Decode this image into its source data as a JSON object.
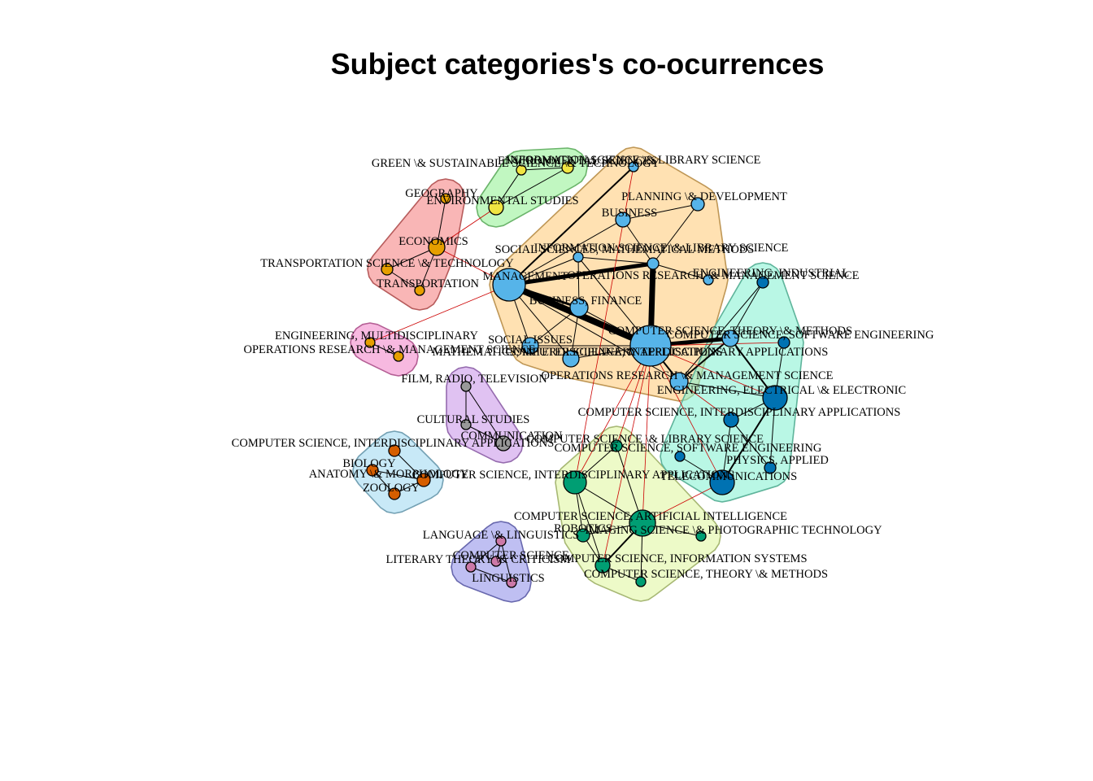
{
  "title": "Subject categories's co-ocurrences",
  "colors": {
    "orange": "#ffc973",
    "red": "#f47a7a",
    "green": "#8ef08e",
    "pink": "#f17fc7",
    "purple": "#c78fe8",
    "lightblue": "#9ad7f0",
    "blue": "#8a8ae8",
    "yellow": "#dff59a",
    "teal": "#7ff0cf",
    "n_blue": "#56b4e9",
    "n_dblue": "#0072b2",
    "n_green": "#009e73",
    "n_orange": "#e69f00",
    "n_yellow": "#f0e442",
    "n_grey": "#999999",
    "n_rust": "#d55e00",
    "n_pink": "#cc79a7",
    "edge_between": "#cc0000",
    "edge_within": "#000000"
  },
  "nodes": [
    {
      "id": "mgmt",
      "label": "MANAGEMENT",
      "size": 20,
      "color": "n_blue"
    },
    {
      "id": "csia",
      "label": "COMPUTER SCIENCE, INTERDISCIPLINARY APPLICATIONS",
      "size": 25,
      "color": "n_blue"
    },
    {
      "id": "is_ls",
      "label": "INFORMATION SCIENCE \\& LIBRARY SCIENCE",
      "size": 7,
      "color": "n_blue"
    },
    {
      "id": "soc_math",
      "label": "SOCIAL  SCIENCES, MATHEMATICAL METHODS",
      "size": 6,
      "color": "n_blue"
    },
    {
      "id": "bus_fin",
      "label": "BUSINESS, FINANCE",
      "size": 11,
      "color": "n_blue"
    },
    {
      "id": "business",
      "label": "BUSINESS",
      "size": 9,
      "color": "n_blue"
    },
    {
      "id": "planning",
      "label": "PLANNING \\& DEVELOPMENT",
      "size": 8,
      "color": "n_blue"
    },
    {
      "id": "is_ls_top",
      "label": "INFORMATION SCIENCE \\& LIBRARY SCIENCE",
      "size": 6,
      "color": "n_blue"
    },
    {
      "id": "social_issues",
      "label": "SOCIAL ISSUES",
      "size": 10,
      "color": "n_blue"
    },
    {
      "id": "math_ia",
      "label": "MATHEMATICS, INTERDISCIPLINARY APPLICATIONS",
      "size": 10,
      "color": "n_blue"
    },
    {
      "id": "or_ms_blue",
      "label": "OPERATIONS RESEARCH \\& MANAGEMENT SCIENCE",
      "size": 11,
      "color": "n_blue"
    },
    {
      "id": "or_ms_ind",
      "label": "OPERATIONS RESEARCH \\& MANAGEMENT   SCIENCE",
      "size": 6,
      "color": "n_blue"
    },
    {
      "id": "eng_ind",
      "label": "ENGINEERING, INDUSTRIAL",
      "size": 7,
      "color": "n_dblue"
    },
    {
      "id": "cs_tm_blue",
      "label": "COMPUTER SCIENCE, THEORY \\&  METHODS",
      "size": 10,
      "color": "n_blue"
    },
    {
      "id": "cs_se_blue",
      "label": "COMPUTER SCIENCE, SOFTWARE ENGINEERING",
      "size": 7,
      "color": "n_dblue"
    },
    {
      "id": "eng_elec",
      "label": "ENGINEERING, ELECTRICAL \\& ELECTRONIC",
      "size": 15,
      "color": "n_dblue"
    },
    {
      "id": "cs_ia_teal",
      "label": "COMPUTER SCIENCE,  INTERDISCIPLINARY APPLICATIONS",
      "size": 9,
      "color": "n_dblue"
    },
    {
      "id": "physics",
      "label": "PHYSICS, APPLIED",
      "size": 7,
      "color": "n_dblue"
    },
    {
      "id": "telecom",
      "label": "TELECOMMUNICATIONS",
      "size": 15,
      "color": "n_dblue"
    },
    {
      "id": "cs_se_teal",
      "label": "COMPUTER SCIENCE, SOFTWARE  ENGINEERING",
      "size": 6,
      "color": "n_dblue"
    },
    {
      "id": "cs_ai",
      "label": "COMPUTER SCIENCE, ARTIFICIAL INTELLIGENCE",
      "size": 16,
      "color": "n_green"
    },
    {
      "id": "cs_ia_green",
      "label": "COMPUTER SCIENCE, INTERDISCIPLINARY APPLICATIONS",
      "size": 14,
      "color": "n_green"
    },
    {
      "id": "cs_ls_green",
      "label": "COMPUTER SCIENCE  \\&  LIBRARY SCIENCE",
      "size": 7,
      "color": "n_green"
    },
    {
      "id": "robotics",
      "label": "ROBOTICS",
      "size": 8,
      "color": "n_green"
    },
    {
      "id": "imaging",
      "label": "IMAGING SCIENCE  \\&  PHOTOGRAPHIC TECHNOLOGY",
      "size": 6,
      "color": "n_green"
    },
    {
      "id": "cs_is",
      "label": "COMPUTER SCIENCE, INFORMATION   SYSTEMS",
      "size": 9,
      "color": "n_green"
    },
    {
      "id": "cs_tm_green",
      "label": "COMPUTER SCIENCE, THEORY \\& METHODS",
      "size": 6,
      "color": "n_green"
    },
    {
      "id": "geography",
      "label": "GEOGRAPHY",
      "size": 6,
      "color": "n_orange"
    },
    {
      "id": "economics",
      "label": "ECONOMICS",
      "size": 10,
      "color": "n_orange"
    },
    {
      "id": "trans_sci",
      "label": "TRANSPORTATION SCIENCE \\& TECHNOLOGY",
      "size": 7,
      "color": "n_orange"
    },
    {
      "id": "transport",
      "label": "TRANSPORTATION",
      "size": 6,
      "color": "n_orange"
    },
    {
      "id": "env_studies",
      "label": "ENVIRONMENTAL STUDIES",
      "size": 9,
      "color": "n_yellow"
    },
    {
      "id": "green_sus",
      "label": "GREEN \\& SUSTAINABLE SCIENCE \\& TECHNOLOGY",
      "size": 6,
      "color": "n_yellow"
    },
    {
      "id": "env_sci",
      "label": "ENVIRONMENTAL SCIENCES",
      "size": 7,
      "color": "n_yellow"
    },
    {
      "id": "eng_multi",
      "label": "ENGINEERING, MULTIDISCIPLINARY",
      "size": 6,
      "color": "n_orange"
    },
    {
      "id": "or_ms_pink",
      "label": "OPERATIONS RESEARCH \\&  MANAGEMENT SCIENCE",
      "size": 6,
      "color": "n_orange"
    },
    {
      "id": "film",
      "label": "FILM, RADIO, TELEVISION",
      "size": 6,
      "color": "n_grey"
    },
    {
      "id": "cultural",
      "label": "CULTURAL STUDIES",
      "size": 6,
      "color": "n_grey"
    },
    {
      "id": "communication",
      "label": "COMMUNICATION",
      "size": 9,
      "color": "n_grey"
    },
    {
      "id": "cs_ia_lb",
      "label": "COMPUTER SCIENCE, INTERDISCIPLINARY  APPLICATIONS",
      "size": 7,
      "color": "n_rust"
    },
    {
      "id": "biology",
      "label": "BIOLOGY",
      "size": 7,
      "color": "n_rust"
    },
    {
      "id": "anatomy",
      "label": "ANATOMY \\& MORPHOLOGY",
      "size": 8,
      "color": "n_rust"
    },
    {
      "id": "zoology",
      "label": "ZOOLOGY",
      "size": 7,
      "color": "n_rust"
    },
    {
      "id": "language",
      "label": "LANGUAGE \\& LINGUISTICS",
      "size": 6,
      "color": "n_pink"
    },
    {
      "id": "literary",
      "label": "LITERARY THEORY \\& CRITICISM",
      "size": 6,
      "color": "n_pink"
    },
    {
      "id": "linguistics",
      "label": "LINGUISTICS",
      "size": 6,
      "color": "n_pink"
    },
    {
      "id": "cs_pink",
      "label": "COMPUTER SCIENCE,",
      "size": 6,
      "color": "n_pink"
    }
  ],
  "edges": [
    {
      "a": "mgmt",
      "b": "csia",
      "w": 8
    },
    {
      "a": "csia",
      "b": "is_ls",
      "w": 7
    },
    {
      "a": "mgmt",
      "b": "is_ls",
      "w": 5
    },
    {
      "a": "mgmt",
      "b": "bus_fin",
      "w": 3
    },
    {
      "a": "csia",
      "b": "cs_tm_blue",
      "w": 5
    },
    {
      "a": "mgmt",
      "b": "is_ls_top",
      "w": 2
    },
    {
      "a": "mgmt",
      "b": "soc_math",
      "w": 1
    },
    {
      "a": "mgmt",
      "b": "business",
      "w": 1
    },
    {
      "a": "mgmt",
      "b": "social_issues",
      "w": 1
    },
    {
      "a": "mgmt",
      "b": "math_ia",
      "w": 1
    },
    {
      "a": "mgmt",
      "b": "or_ms_blue",
      "w": 1
    },
    {
      "a": "csia",
      "b": "or_ms_blue",
      "w": 2
    },
    {
      "a": "csia",
      "b": "bus_fin",
      "w": 1
    },
    {
      "a": "csia",
      "b": "math_ia",
      "w": 1
    },
    {
      "a": "csia",
      "b": "social_issues",
      "w": 1
    },
    {
      "a": "csia",
      "b": "soc_math",
      "w": 1
    },
    {
      "a": "business",
      "b": "planning",
      "w": 1
    },
    {
      "a": "business",
      "b": "is_ls",
      "w": 1
    },
    {
      "a": "is_ls",
      "b": "planning",
      "w": 1
    },
    {
      "a": "is_ls",
      "b": "or_ms_ind",
      "w": 1
    },
    {
      "a": "bus_fin",
      "b": "math_ia",
      "w": 1
    },
    {
      "a": "bus_fin",
      "b": "soc_math",
      "w": 1
    },
    {
      "a": "bus_fin",
      "b": "social_issues",
      "w": 1
    },
    {
      "a": "is_ls",
      "b": "soc_math",
      "w": 1
    },
    {
      "a": "eng_ind",
      "b": "cs_tm_blue",
      "w": 1
    },
    {
      "a": "eng_ind",
      "b": "or_ms_blue",
      "w": 1
    },
    {
      "a": "cs_tm_blue",
      "b": "eng_elec",
      "w": 2
    },
    {
      "a": "cs_se_blue",
      "b": "eng_elec",
      "w": 1
    },
    {
      "a": "eng_elec",
      "b": "cs_ia_teal",
      "w": 1
    },
    {
      "a": "eng_elec",
      "b": "telecom",
      "w": 2
    },
    {
      "a": "eng_elec",
      "b": "physics",
      "w": 1
    },
    {
      "a": "cs_ia_teal",
      "b": "telecom",
      "w": 1
    },
    {
      "a": "cs_ia_teal",
      "b": "physics",
      "w": 1
    },
    {
      "a": "telecom",
      "b": "cs_se_teal",
      "w": 1
    },
    {
      "a": "or_ms_blue",
      "b": "cs_tm_blue",
      "w": 2
    },
    {
      "a": "or_ms_blue",
      "b": "eng_elec",
      "w": 1
    },
    {
      "a": "cs_ai",
      "b": "cs_ia_green",
      "w": 1
    },
    {
      "a": "cs_ai",
      "b": "cs_ls_green",
      "w": 1
    },
    {
      "a": "cs_ai",
      "b": "robotics",
      "w": 1
    },
    {
      "a": "cs_ai",
      "b": "imaging",
      "w": 1
    },
    {
      "a": "cs_ai",
      "b": "cs_is",
      "w": 2
    },
    {
      "a": "cs_ai",
      "b": "cs_tm_green",
      "w": 1
    },
    {
      "a": "cs_ia_green",
      "b": "robotics",
      "w": 1
    },
    {
      "a": "cs_ia_green",
      "b": "cs_is",
      "w": 1
    },
    {
      "a": "cs_ia_green",
      "b": "cs_ls_green",
      "w": 1
    },
    {
      "a": "robotics",
      "b": "cs_is",
      "w": 1
    },
    {
      "a": "cs_is",
      "b": "cs_tm_green",
      "w": 1
    },
    {
      "a": "geography",
      "b": "economics",
      "w": 1
    },
    {
      "a": "economics",
      "b": "trans_sci",
      "w": 1
    },
    {
      "a": "economics",
      "b": "transport",
      "w": 1
    },
    {
      "a": "trans_sci",
      "b": "transport",
      "w": 1
    },
    {
      "a": "env_studies",
      "b": "green_sus",
      "w": 1
    },
    {
      "a": "env_studies",
      "b": "env_sci",
      "w": 1
    },
    {
      "a": "green_sus",
      "b": "env_sci",
      "w": 1
    },
    {
      "a": "eng_multi",
      "b": "or_ms_pink",
      "w": 1
    },
    {
      "a": "film",
      "b": "cultural",
      "w": 1
    },
    {
      "a": "cultural",
      "b": "communication",
      "w": 1
    },
    {
      "a": "film",
      "b": "communication",
      "w": 1
    },
    {
      "a": "cs_ia_lb",
      "b": "anatomy",
      "w": 1
    },
    {
      "a": "biology",
      "b": "anatomy",
      "w": 1
    },
    {
      "a": "biology",
      "b": "zoology",
      "w": 1
    },
    {
      "a": "anatomy",
      "b": "zoology",
      "w": 1
    },
    {
      "a": "language",
      "b": "literary",
      "w": 1
    },
    {
      "a": "language",
      "b": "linguistics",
      "w": 1
    },
    {
      "a": "literary",
      "b": "linguistics",
      "w": 1
    },
    {
      "a": "language",
      "b": "cs_pink",
      "w": 1
    },
    {
      "a": "mgmt",
      "b": "economics",
      "w": 1,
      "between": true
    },
    {
      "a": "mgmt",
      "b": "eng_multi",
      "w": 1,
      "between": true
    },
    {
      "a": "csia",
      "b": "cs_ia_green",
      "w": 1,
      "between": true
    },
    {
      "a": "csia",
      "b": "cs_ai",
      "w": 1,
      "between": true
    },
    {
      "a": "csia",
      "b": "telecom",
      "w": 1,
      "between": true
    },
    {
      "a": "csia",
      "b": "eng_elec",
      "w": 1,
      "between": true
    },
    {
      "a": "csia",
      "b": "cs_se_blue",
      "w": 1,
      "between": true
    },
    {
      "a": "csia",
      "b": "cs_ls_green",
      "w": 1,
      "between": true
    },
    {
      "a": "csia",
      "b": "cs_is",
      "w": 1,
      "between": true
    },
    {
      "a": "or_ms_blue",
      "b": "cs_ia_teal",
      "w": 1,
      "between": true
    },
    {
      "a": "is_ls_top",
      "b": "cs_ia_green",
      "w": 1,
      "between": true
    },
    {
      "a": "env_studies",
      "b": "economics",
      "w": 1,
      "between": true
    },
    {
      "a": "cs_ai",
      "b": "telecom",
      "w": 1,
      "between": true
    }
  ],
  "groups": [
    {
      "id": "orange",
      "fill": "orange",
      "members": [
        "mgmt",
        "csia",
        "is_ls",
        "soc_math",
        "bus_fin",
        "business",
        "planning",
        "is_ls_top",
        "social_issues",
        "math_ia",
        "or_ms_blue",
        "or_ms_ind"
      ]
    },
    {
      "id": "red",
      "fill": "red",
      "members": [
        "geography",
        "economics",
        "trans_sci",
        "transport"
      ]
    },
    {
      "id": "green",
      "fill": "green",
      "members": [
        "env_studies",
        "green_sus",
        "env_sci"
      ]
    },
    {
      "id": "pink",
      "fill": "pink",
      "members": [
        "eng_multi",
        "or_ms_pink"
      ]
    },
    {
      "id": "purple",
      "fill": "purple",
      "members": [
        "film",
        "cultural",
        "communication"
      ]
    },
    {
      "id": "lightblue",
      "fill": "lightblue",
      "members": [
        "cs_ia_lb",
        "biology",
        "anatomy",
        "zoology"
      ]
    },
    {
      "id": "blue",
      "fill": "blue",
      "members": [
        "language",
        "literary",
        "linguistics",
        "cs_pink"
      ]
    },
    {
      "id": "yellow",
      "fill": "yellow",
      "members": [
        "cs_ai",
        "cs_ia_green",
        "cs_ls_green",
        "robotics",
        "imaging",
        "cs_is",
        "cs_tm_green"
      ]
    },
    {
      "id": "teal",
      "fill": "teal",
      "members": [
        "eng_ind",
        "cs_tm_blue",
        "cs_se_blue",
        "eng_elec",
        "cs_ia_teal",
        "physics",
        "telecom",
        "cs_se_teal"
      ]
    }
  ]
}
